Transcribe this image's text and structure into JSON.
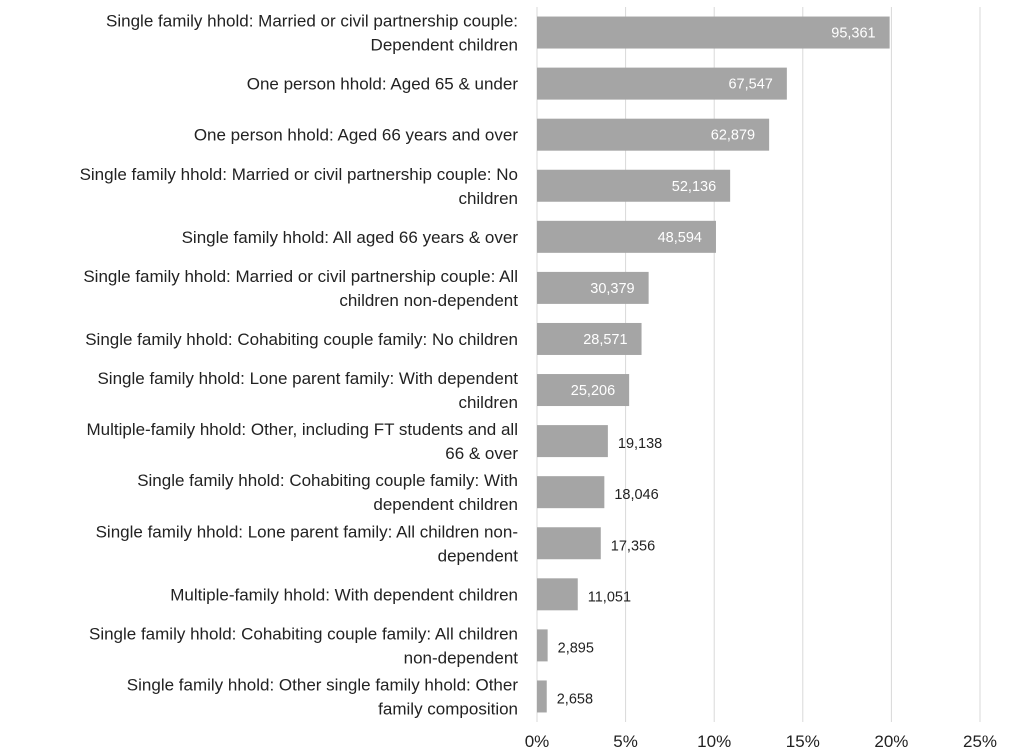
{
  "chart_data": {
    "type": "bar",
    "orientation": "horizontal",
    "categories": [
      [
        "Single family hhold: Married or civil partnership couple:",
        "Dependent children"
      ],
      [
        "One person hhold: Aged 65 & under"
      ],
      [
        "One person hhold: Aged 66 years and over"
      ],
      [
        "Single family hhold: Married or civil partnership couple: No",
        "children"
      ],
      [
        "Single family hhold: All aged 66 years & over"
      ],
      [
        "Single family hhold: Married or civil partnership couple: All",
        "children non-dependent"
      ],
      [
        "Single family hhold: Cohabiting couple family: No children"
      ],
      [
        "Single family hhold: Lone parent family: With dependent",
        "children"
      ],
      [
        "Multiple-family hhold: Other, including FT students and all",
        "66 & over"
      ],
      [
        "Single family hhold: Cohabiting couple family: With",
        "dependent children"
      ],
      [
        "Single family hhold: Lone parent family: All children non-",
        "dependent"
      ],
      [
        "Multiple-family hhold: With dependent children"
      ],
      [
        "Single family hhold: Cohabiting couple family: All children",
        "non-dependent"
      ],
      [
        "Single family hhold: Other single family hhold: Other",
        "family composition"
      ]
    ],
    "values": [
      19.9,
      14.1,
      13.1,
      10.9,
      10.1,
      6.3,
      5.9,
      5.2,
      4.0,
      3.8,
      3.6,
      2.3,
      0.6,
      0.55
    ],
    "data_labels": [
      "95,361",
      "67,547",
      "62,879",
      "52,136",
      "48,594",
      "30,379",
      "28,571",
      "25,206",
      "19,138",
      "18,046",
      "17,356",
      "11,051",
      "2,895",
      "2,658"
    ],
    "label_inside": [
      true,
      true,
      true,
      true,
      true,
      true,
      true,
      true,
      false,
      false,
      false,
      false,
      false,
      false
    ],
    "x_ticks": [
      "0%",
      "5%",
      "10%",
      "15%",
      "20%",
      "25%"
    ],
    "xlim": [
      0,
      25
    ],
    "tick_step": 5,
    "grid": true,
    "colors": {
      "bar": "#a5a5a5",
      "label_inside": "#ffffff",
      "label_outside": "#222222",
      "grid": "#d9d9d9",
      "text": "#222222"
    }
  }
}
